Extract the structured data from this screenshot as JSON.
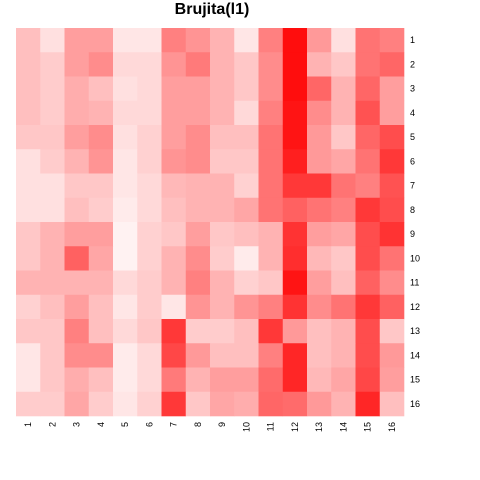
{
  "chart_data": {
    "type": "heatmap",
    "title": "Brujita(l1)",
    "x_categories": [
      "1",
      "2",
      "3",
      "4",
      "5",
      "6",
      "7",
      "8",
      "9",
      "10",
      "11",
      "12",
      "13",
      "14",
      "15",
      "16"
    ],
    "y_categories": [
      "1",
      "2",
      "3",
      "4",
      "5",
      "6",
      "7",
      "8",
      "9",
      "10",
      "11",
      "12",
      "13",
      "14",
      "15",
      "16"
    ],
    "value_range": [
      0,
      1
    ],
    "color_low": "#ffffff",
    "color_high": "#ff0000",
    "values": [
      [
        0.25,
        0.12,
        0.38,
        0.38,
        0.1,
        0.1,
        0.5,
        0.42,
        0.3,
        0.1,
        0.5,
        0.95,
        0.4,
        0.12,
        0.55,
        0.5
      ],
      [
        0.25,
        0.2,
        0.38,
        0.45,
        0.15,
        0.15,
        0.42,
        0.52,
        0.3,
        0.22,
        0.45,
        0.95,
        0.3,
        0.22,
        0.55,
        0.6
      ],
      [
        0.25,
        0.2,
        0.32,
        0.25,
        0.12,
        0.15,
        0.38,
        0.38,
        0.3,
        0.22,
        0.45,
        0.95,
        0.6,
        0.3,
        0.6,
        0.38
      ],
      [
        0.25,
        0.2,
        0.32,
        0.3,
        0.15,
        0.15,
        0.38,
        0.38,
        0.3,
        0.15,
        0.5,
        0.92,
        0.45,
        0.3,
        0.68,
        0.38
      ],
      [
        0.22,
        0.22,
        0.38,
        0.45,
        0.12,
        0.18,
        0.38,
        0.45,
        0.25,
        0.25,
        0.55,
        0.92,
        0.4,
        0.22,
        0.6,
        0.7
      ],
      [
        0.12,
        0.2,
        0.3,
        0.42,
        0.1,
        0.18,
        0.42,
        0.45,
        0.22,
        0.22,
        0.55,
        0.88,
        0.4,
        0.35,
        0.55,
        0.78
      ],
      [
        0.12,
        0.12,
        0.22,
        0.22,
        0.1,
        0.15,
        0.28,
        0.3,
        0.3,
        0.18,
        0.55,
        0.78,
        0.78,
        0.55,
        0.5,
        0.68
      ],
      [
        0.12,
        0.12,
        0.25,
        0.2,
        0.08,
        0.15,
        0.25,
        0.3,
        0.3,
        0.35,
        0.55,
        0.62,
        0.55,
        0.5,
        0.78,
        0.7
      ],
      [
        0.22,
        0.3,
        0.38,
        0.38,
        0.05,
        0.18,
        0.22,
        0.38,
        0.22,
        0.25,
        0.3,
        0.8,
        0.38,
        0.35,
        0.7,
        0.8
      ],
      [
        0.22,
        0.3,
        0.62,
        0.35,
        0.05,
        0.18,
        0.3,
        0.45,
        0.2,
        0.08,
        0.3,
        0.82,
        0.28,
        0.22,
        0.7,
        0.55
      ],
      [
        0.3,
        0.3,
        0.3,
        0.3,
        0.15,
        0.2,
        0.3,
        0.5,
        0.3,
        0.18,
        0.22,
        0.92,
        0.38,
        0.25,
        0.62,
        0.45
      ],
      [
        0.18,
        0.25,
        0.38,
        0.25,
        0.1,
        0.2,
        0.1,
        0.42,
        0.3,
        0.42,
        0.5,
        0.8,
        0.45,
        0.55,
        0.78,
        0.62
      ],
      [
        0.22,
        0.22,
        0.5,
        0.25,
        0.15,
        0.22,
        0.78,
        0.2,
        0.2,
        0.25,
        0.78,
        0.4,
        0.25,
        0.3,
        0.7,
        0.22
      ],
      [
        0.1,
        0.22,
        0.45,
        0.45,
        0.08,
        0.15,
        0.72,
        0.4,
        0.25,
        0.25,
        0.5,
        0.85,
        0.25,
        0.3,
        0.7,
        0.4
      ],
      [
        0.1,
        0.22,
        0.32,
        0.25,
        0.08,
        0.15,
        0.52,
        0.3,
        0.38,
        0.38,
        0.58,
        0.85,
        0.28,
        0.35,
        0.72,
        0.38
      ],
      [
        0.2,
        0.2,
        0.35,
        0.2,
        0.1,
        0.18,
        0.78,
        0.22,
        0.35,
        0.32,
        0.6,
        0.58,
        0.4,
        0.3,
        0.85,
        0.25
      ]
    ]
  }
}
